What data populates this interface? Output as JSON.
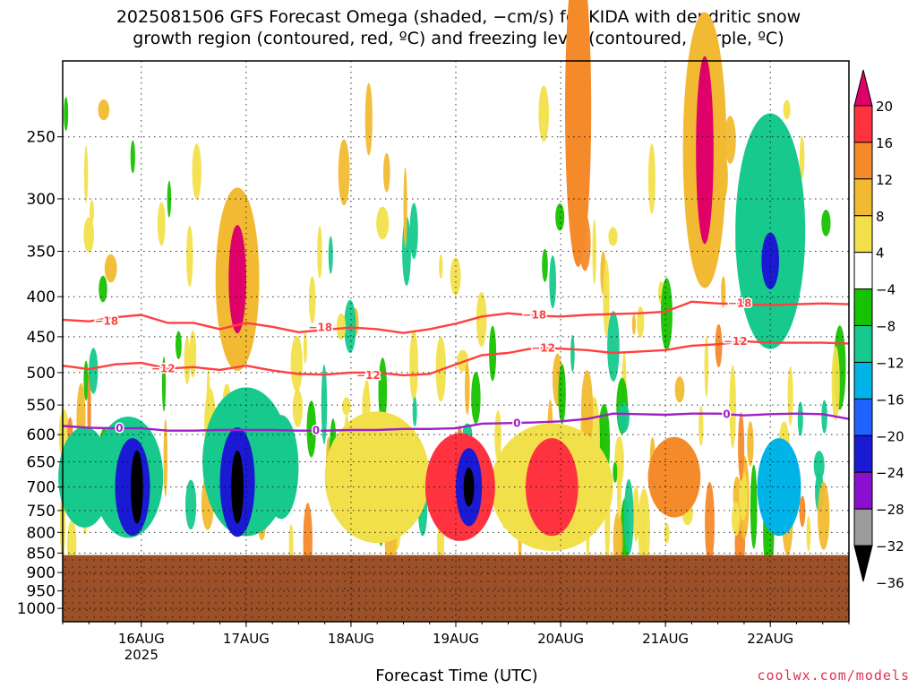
{
  "title": {
    "line1": "2025081506 GFS Forecast Omega (shaded, −cm/s) for KIDA with dendritic snow",
    "line2": "growth region (contoured, red, ºC) and freezing level (contoured, purple, ºC)"
  },
  "xlabel": "Forecast Time (UTC)",
  "credit": "coolwx.com/models",
  "chart_data": {
    "type": "heatmap",
    "title": "2025081506 GFS Forecast Omega (shaded, −cm/s) for KIDA with dendritic snow growth region (contoured, red, ºC) and freezing level (contoured, purple, ºC)",
    "xlabel": "Forecast Time (UTC)",
    "ylabel": "",
    "x_range": [
      "2025-08-15 06",
      "2025-08-22 18"
    ],
    "y_range": [
      1000,
      200
    ],
    "y_ticks": [
      250,
      300,
      350,
      400,
      450,
      500,
      550,
      600,
      650,
      700,
      750,
      800,
      850,
      900,
      950,
      1000
    ],
    "x_ticks": [
      {
        "label": "16AUG",
        "sub": "2025",
        "hour": 18
      },
      {
        "label": "17AUG",
        "sub": "",
        "hour": 42
      },
      {
        "label": "18AUG",
        "sub": "",
        "hour": 66
      },
      {
        "label": "19AUG",
        "sub": "",
        "hour": 90
      },
      {
        "label": "20AUG",
        "sub": "",
        "hour": 114
      },
      {
        "label": "21AUG",
        "sub": "",
        "hour": 138
      },
      {
        "label": "22AUG",
        "sub": "",
        "hour": 162
      }
    ],
    "grid": true,
    "underground_below_hpa": 855,
    "colorbar": {
      "labels": [
        "20",
        "16",
        "12",
        "8",
        "4",
        "−4",
        "−8",
        "−12",
        "−16",
        "−20",
        "−24",
        "−28",
        "−32",
        "−36"
      ],
      "colors": [
        "#e0006a",
        "#ff3340",
        "#f58a2a",
        "#f2ba32",
        "#f2e04a",
        "#ffffff",
        "#17c200",
        "#17c98d",
        "#00b4e8",
        "#1f62ff",
        "#1a1ad4",
        "#8a0fcf",
        "#9b9b9b",
        "#000000"
      ],
      "underground_color": "#9c5028"
    },
    "series": [
      {
        "name": "-18",
        "color": "#ff4040",
        "points": [
          [
            0,
            428
          ],
          [
            6,
            430
          ],
          [
            12,
            425
          ],
          [
            18,
            422
          ],
          [
            24,
            432
          ],
          [
            30,
            432
          ],
          [
            36,
            440
          ],
          [
            42,
            432
          ],
          [
            48,
            437
          ],
          [
            54,
            444
          ],
          [
            60,
            441
          ],
          [
            66,
            438
          ],
          [
            72,
            440
          ],
          [
            78,
            445
          ],
          [
            84,
            440
          ],
          [
            90,
            433
          ],
          [
            96,
            424
          ],
          [
            102,
            420
          ],
          [
            108,
            423
          ],
          [
            114,
            424
          ],
          [
            120,
            422
          ],
          [
            126,
            421
          ],
          [
            132,
            420
          ],
          [
            138,
            418
          ],
          [
            144,
            406
          ],
          [
            150,
            408
          ],
          [
            156,
            409
          ],
          [
            162,
            410
          ],
          [
            168,
            409
          ],
          [
            174,
            408
          ],
          [
            180,
            409
          ]
        ]
      },
      {
        "name": "-12",
        "color": "#ff4040",
        "points": [
          [
            0,
            490
          ],
          [
            6,
            495
          ],
          [
            12,
            488
          ],
          [
            18,
            486
          ],
          [
            24,
            494
          ],
          [
            30,
            492
          ],
          [
            36,
            496
          ],
          [
            42,
            490
          ],
          [
            48,
            497
          ],
          [
            54,
            502
          ],
          [
            60,
            503
          ],
          [
            66,
            500
          ],
          [
            72,
            500
          ],
          [
            78,
            504
          ],
          [
            84,
            502
          ],
          [
            90,
            488
          ],
          [
            96,
            475
          ],
          [
            102,
            472
          ],
          [
            108,
            465
          ],
          [
            114,
            466
          ],
          [
            120,
            468
          ],
          [
            126,
            472
          ],
          [
            132,
            470
          ],
          [
            138,
            468
          ],
          [
            144,
            462
          ],
          [
            150,
            460
          ],
          [
            156,
            456
          ],
          [
            162,
            458
          ],
          [
            168,
            458
          ],
          [
            174,
            458
          ],
          [
            180,
            459
          ]
        ]
      },
      {
        "name": "0",
        "color": "#a020c8",
        "points": [
          [
            0,
            585
          ],
          [
            6,
            588
          ],
          [
            12,
            589
          ],
          [
            18,
            589
          ],
          [
            24,
            593
          ],
          [
            30,
            593
          ],
          [
            36,
            592
          ],
          [
            42,
            592
          ],
          [
            48,
            592
          ],
          [
            54,
            593
          ],
          [
            60,
            593
          ],
          [
            66,
            592
          ],
          [
            72,
            592
          ],
          [
            78,
            590
          ],
          [
            84,
            590
          ],
          [
            90,
            589
          ],
          [
            96,
            581
          ],
          [
            102,
            580
          ],
          [
            108,
            579
          ],
          [
            114,
            577
          ],
          [
            120,
            573
          ],
          [
            126,
            564
          ],
          [
            132,
            565
          ],
          [
            138,
            566
          ],
          [
            144,
            564
          ],
          [
            150,
            564
          ],
          [
            156,
            567
          ],
          [
            162,
            565
          ],
          [
            168,
            564
          ],
          [
            174,
            565
          ],
          [
            180,
            573
          ]
        ]
      }
    ],
    "contour_labels": [
      {
        "text": "−18",
        "hour": 10,
        "hpa": 430
      },
      {
        "text": "−12",
        "hour": 23,
        "hpa": 494
      },
      {
        "text": "−18",
        "hour": 59,
        "hpa": 438
      },
      {
        "text": "−12",
        "hour": 70,
        "hpa": 504
      },
      {
        "text": "−18",
        "hour": 108,
        "hpa": 422
      },
      {
        "text": "−12",
        "hour": 110,
        "hpa": 465
      },
      {
        "text": "−18",
        "hour": 155,
        "hpa": 408
      },
      {
        "text": "−12",
        "hour": 154,
        "hpa": 456
      },
      {
        "text": "0",
        "hour": 13,
        "hpa": 589
      },
      {
        "text": "0",
        "hour": 58,
        "hpa": 593
      },
      {
        "text": "0",
        "hour": 104,
        "hpa": 580
      },
      {
        "text": "0",
        "hour": 152,
        "hpa": 565
      }
    ],
    "omega_features": [
      {
        "hour": 17,
        "hpa": 700,
        "dh": 1.4,
        "dp": 150,
        "value": -36
      },
      {
        "hour": 16,
        "hpa": 700,
        "dh": 4,
        "dp": 200,
        "value": -20
      },
      {
        "hour": 15,
        "hpa": 680,
        "dh": 8,
        "dp": 240,
        "value": -8
      },
      {
        "hour": 40,
        "hpa": 700,
        "dh": 1.4,
        "dp": 150,
        "value": -36
      },
      {
        "hour": 40,
        "hpa": 690,
        "dh": 4,
        "dp": 220,
        "value": -20
      },
      {
        "hour": 42,
        "hpa": 650,
        "dh": 10,
        "dp": 280,
        "value": -8
      },
      {
        "hour": 40,
        "hpa": 380,
        "dh": 2,
        "dp": 120,
        "value": 20
      },
      {
        "hour": 40,
        "hpa": 380,
        "dh": 5,
        "dp": 200,
        "value": 8
      },
      {
        "hour": 93,
        "hpa": 700,
        "dh": 1.2,
        "dp": 80,
        "value": -36
      },
      {
        "hour": 93,
        "hpa": 700,
        "dh": 3,
        "dp": 160,
        "value": -20
      },
      {
        "hour": 91,
        "hpa": 700,
        "dh": 8,
        "dp": 220,
        "value": 16
      },
      {
        "hour": 112,
        "hpa": 700,
        "dh": 6,
        "dp": 200,
        "value": 16
      },
      {
        "hour": 112,
        "hpa": 700,
        "dh": 14,
        "dp": 260,
        "value": 4
      },
      {
        "hour": 147,
        "hpa": 260,
        "dh": 2,
        "dp": 140,
        "value": 20
      },
      {
        "hour": 147,
        "hpa": 260,
        "dh": 5,
        "dp": 200,
        "value": 8
      },
      {
        "hour": 162,
        "hpa": 360,
        "dh": 2,
        "dp": 60,
        "value": -20
      },
      {
        "hour": 162,
        "hpa": 330,
        "dh": 8,
        "dp": 220,
        "value": -8
      },
      {
        "hour": 164,
        "hpa": 700,
        "dh": 5,
        "dp": 200,
        "value": -12
      },
      {
        "hour": 118,
        "hpa": 230,
        "dh": 3,
        "dp": 200,
        "value": 12
      },
      {
        "hour": 140,
        "hpa": 680,
        "dh": 6,
        "dp": 160,
        "value": 12
      },
      {
        "hour": 72,
        "hpa": 680,
        "dh": 12,
        "dp": 260,
        "value": 4
      },
      {
        "hour": 50,
        "hpa": 660,
        "dh": 4,
        "dp": 200,
        "value": -8
      },
      {
        "hour": 5,
        "hpa": 680,
        "dh": 6,
        "dp": 200,
        "value": -8
      }
    ]
  }
}
